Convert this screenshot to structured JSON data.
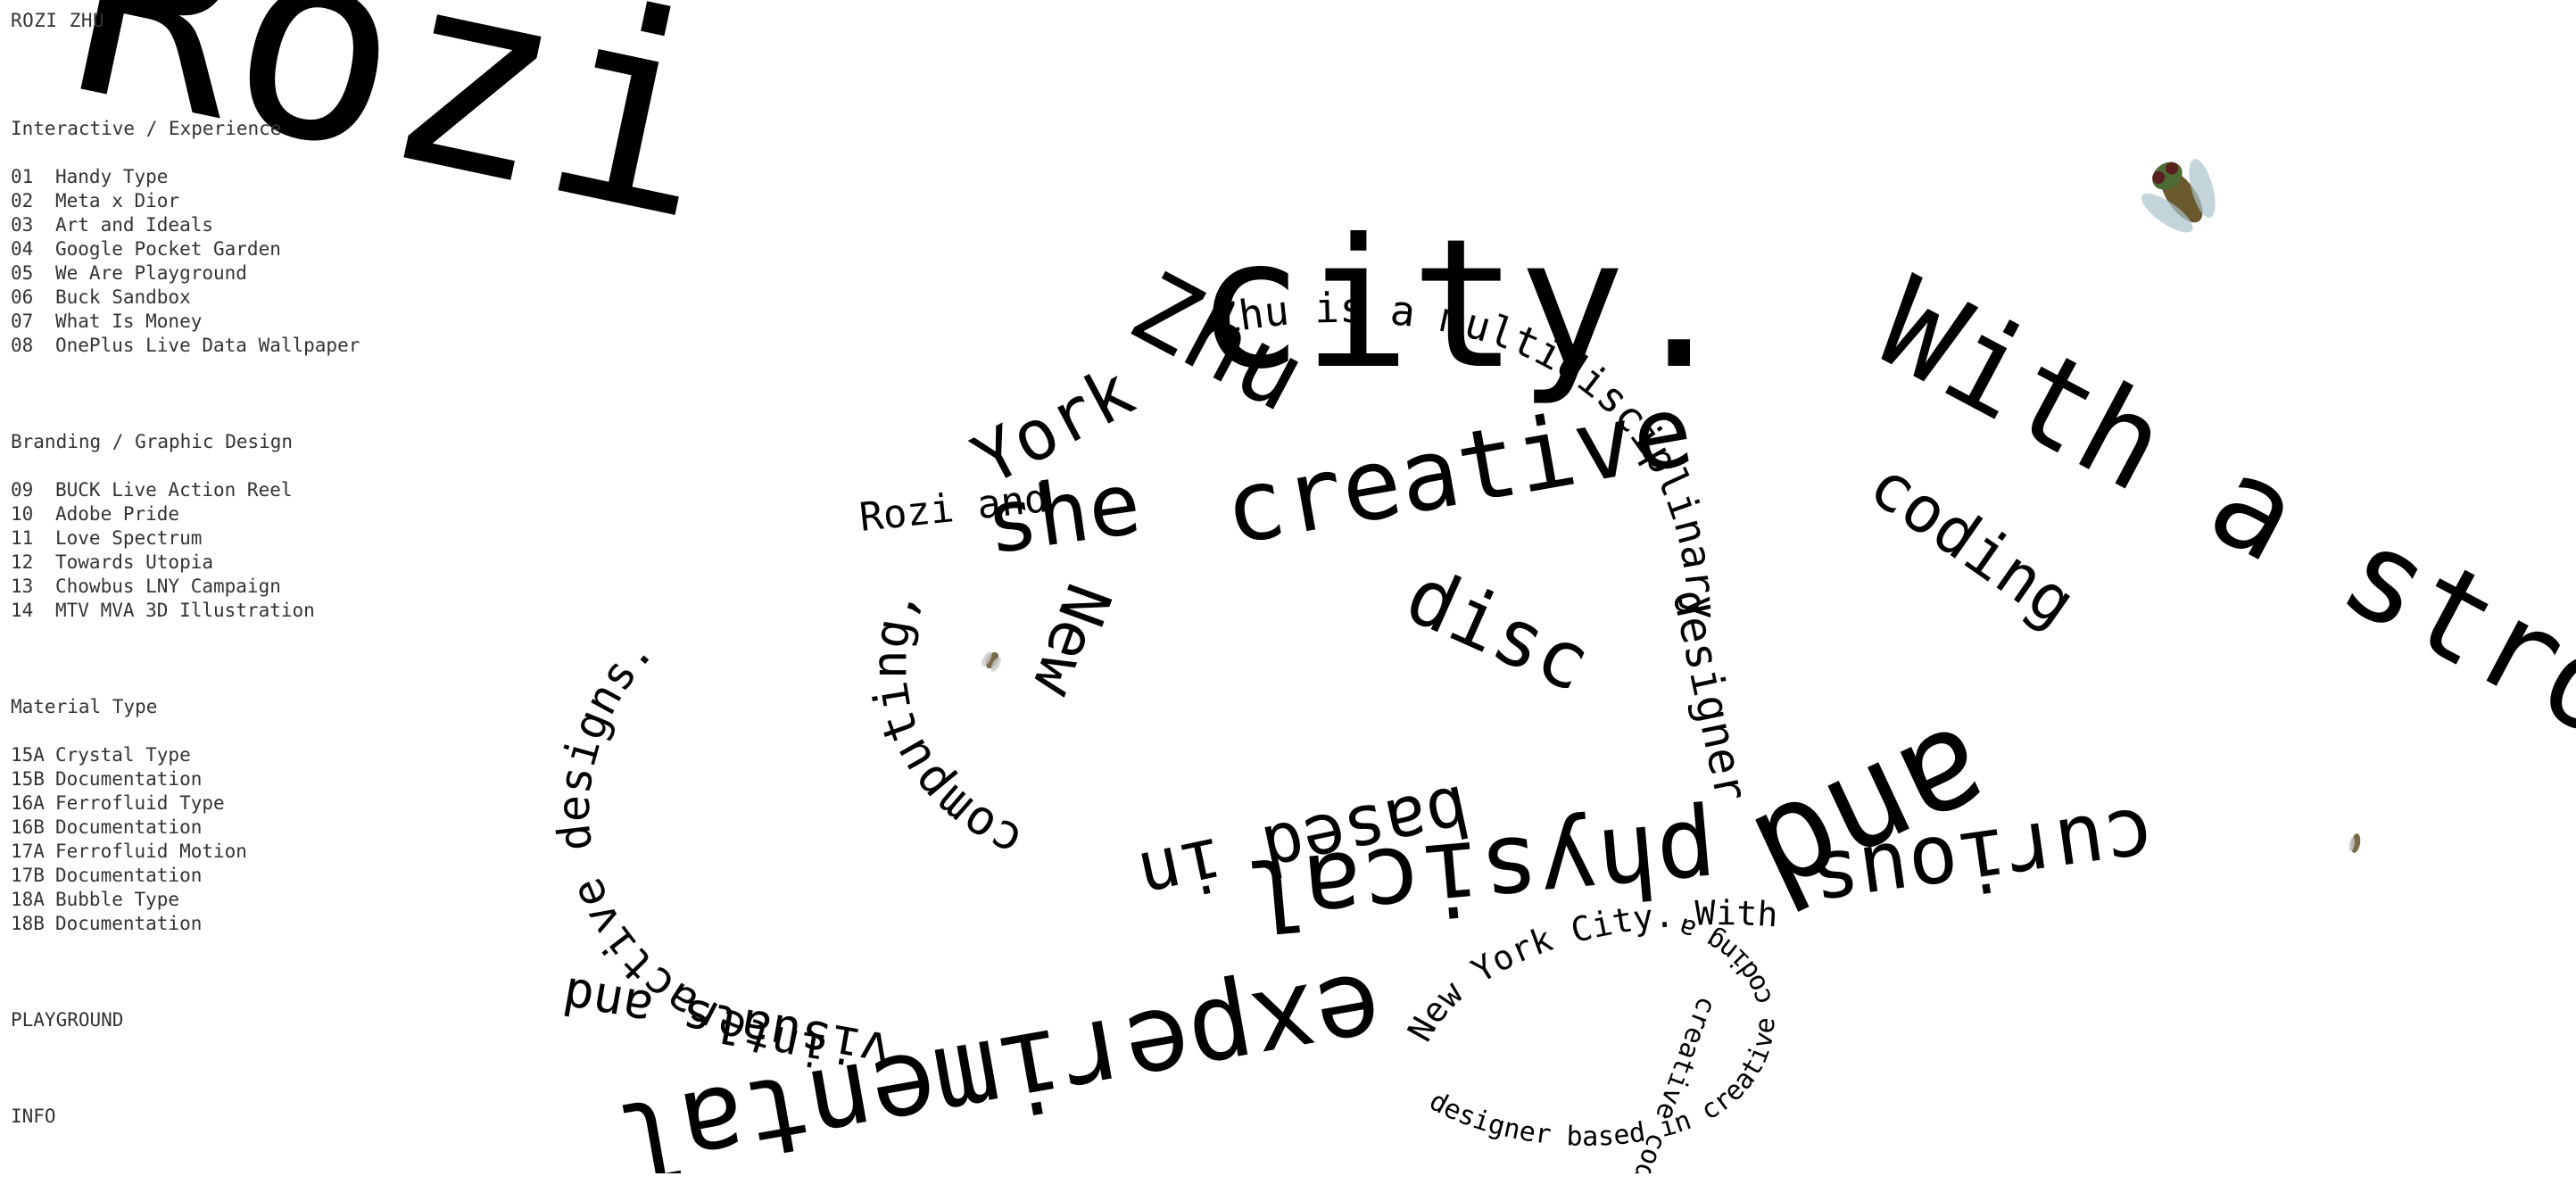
{
  "brand": {
    "name": "ROZI ZHU"
  },
  "sections": [
    {
      "title": "Interactive / Experience",
      "items": [
        {
          "num": "01",
          "label": "Handy Type"
        },
        {
          "num": "02",
          "label": "Meta x Dior"
        },
        {
          "num": "03",
          "label": "Art and Ideals"
        },
        {
          "num": "04",
          "label": "Google Pocket Garden"
        },
        {
          "num": "05",
          "label": "We Are Playground"
        },
        {
          "num": "06",
          "label": "Buck Sandbox"
        },
        {
          "num": "07",
          "label": "What Is Money"
        },
        {
          "num": "08",
          "label": "OnePlus Live Data Wallpaper"
        }
      ]
    },
    {
      "title": "Branding / Graphic Design",
      "items": [
        {
          "num": "09",
          "label": "BUCK Live Action Reel"
        },
        {
          "num": "10",
          "label": "Adobe Pride"
        },
        {
          "num": "11",
          "label": "Love Spectrum"
        },
        {
          "num": "12",
          "label": "Towards Utopia"
        },
        {
          "num": "13",
          "label": "Chowbus LNY Campaign"
        },
        {
          "num": "14",
          "label": "MTV MVA 3D Illustration"
        }
      ]
    },
    {
      "title": "Material Type",
      "items": [
        {
          "num": "15A",
          "label": "Crystal Type"
        },
        {
          "num": "15B",
          "label": "Documentation"
        },
        {
          "num": "16A",
          "label": "Ferrofluid Type"
        },
        {
          "num": "16B",
          "label": "Documentation"
        },
        {
          "num": "17A",
          "label": "Ferrofluid Motion"
        },
        {
          "num": "17B",
          "label": "Documentation"
        },
        {
          "num": "18A",
          "label": "Bubble Type"
        },
        {
          "num": "18B",
          "label": "Documentation"
        }
      ]
    }
  ],
  "links": {
    "playground": "PLAYGROUND",
    "info": "INFO"
  },
  "art": {
    "giant": "Rozi",
    "big_zhu": "Zhu",
    "city": "city.",
    "with_a_strong": "With a strong",
    "curious": "curious",
    "and": "and",
    "experimental": "experimental",
    "visuals_and": "visuals and",
    "interactive_designs": "interactive designs.",
    "rozi_and": "Rozi and",
    "she": "she",
    "creative": "creative",
    "coding": "coding",
    "creative_coding": "creative coding",
    "physical": "physical",
    "based_in": "based in",
    "new": "New",
    "york": "York",
    "computing": "computing,",
    "multidisciplinary": "Zhu is a multidisciplinary",
    "designer": "designer",
    "small_ring": "New York City. With a strong curiosity",
    "small_ring2": "designer based in creative coding and physical computing",
    "is_a": "is a",
    "multidisc": "multidisciplinary",
    "disc": "disc",
    "she_is": "She",
    "ny_city": "New York City. With a"
  },
  "colors": {
    "text": "#333333",
    "art": "#000000",
    "fly_body": "#6b5a2e",
    "fly_wing": "#a9c2cc"
  },
  "icons": {
    "fly": "fly-icon",
    "small_bug_1": "bug-icon",
    "small_bug_2": "bug-icon"
  }
}
